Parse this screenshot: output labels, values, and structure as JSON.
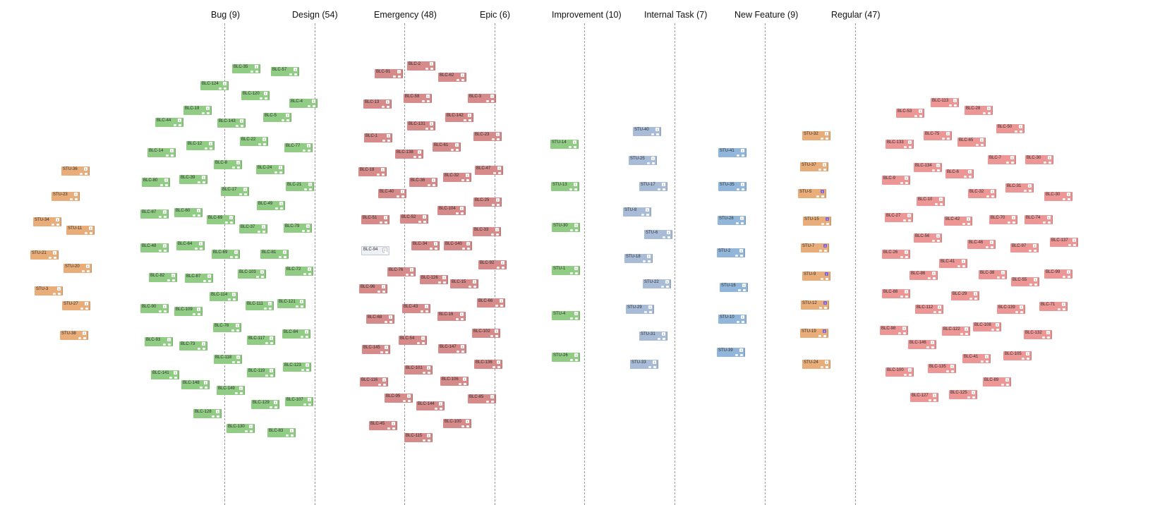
{
  "columns": [
    {
      "key": "bug",
      "label": "Bug (9)"
    },
    {
      "key": "design",
      "label": "Design (54)"
    },
    {
      "key": "emergency",
      "label": "Emergency (48)"
    },
    {
      "key": "epic",
      "label": "Epic (6)"
    },
    {
      "key": "improvement",
      "label": "Improvement (10)"
    },
    {
      "key": "internal-task",
      "label": "Internal Task (7)"
    },
    {
      "key": "new-feature",
      "label": "New Feature (9)"
    },
    {
      "key": "regular",
      "label": "Regular (47)"
    }
  ],
  "card_badge_text": "1",
  "colors": {
    "green": "#90cc84",
    "red": "#d68a89",
    "blue": "#a8bcd8",
    "blue2": "#92b6da",
    "orange": "#e8ad79",
    "coral": "#ec9696",
    "pale": "#edf0f6",
    "column_line": "#9a9a9a",
    "badge_accent": "#7c63d8"
  },
  "cards": [
    {
      "id": "STU-36",
      "color": "orange"
    },
    {
      "id": "STU-23",
      "color": "orange"
    },
    {
      "id": "STU-34",
      "color": "orange"
    },
    {
      "id": "STU-11",
      "color": "orange"
    },
    {
      "id": "STU-21",
      "color": "orange"
    },
    {
      "id": "STU-20",
      "color": "orange"
    },
    {
      "id": "STU-3",
      "color": "orange"
    },
    {
      "id": "STU-27",
      "color": "orange"
    },
    {
      "id": "STU-38",
      "color": "orange"
    },
    {
      "id": "BLC-35",
      "color": "green"
    },
    {
      "id": "BLC-57",
      "color": "green"
    },
    {
      "id": "BLC-124",
      "color": "green"
    },
    {
      "id": "BLC-120",
      "color": "green"
    },
    {
      "id": "BLC-4",
      "color": "green"
    },
    {
      "id": "BLC-19",
      "color": "green"
    },
    {
      "id": "BLC-5",
      "color": "green"
    },
    {
      "id": "BLC-44",
      "color": "green"
    },
    {
      "id": "BLC-143",
      "color": "green"
    },
    {
      "id": "BLC-12",
      "color": "green"
    },
    {
      "id": "BLC-22",
      "color": "green"
    },
    {
      "id": "BLC-77",
      "color": "green"
    },
    {
      "id": "BLC-14",
      "color": "green"
    },
    {
      "id": "BLC-8",
      "color": "green"
    },
    {
      "id": "BLC-24",
      "color": "green"
    },
    {
      "id": "BLC-39",
      "color": "green"
    },
    {
      "id": "BLC-80",
      "color": "green"
    },
    {
      "id": "BLC-21",
      "color": "green"
    },
    {
      "id": "BLC-17",
      "color": "green"
    },
    {
      "id": "BLC-49",
      "color": "green"
    },
    {
      "id": "BLC-67",
      "color": "green"
    },
    {
      "id": "BLC-60",
      "color": "green"
    },
    {
      "id": "BLC-69",
      "color": "green"
    },
    {
      "id": "BLC-37",
      "color": "green"
    },
    {
      "id": "BLC-79",
      "color": "green"
    },
    {
      "id": "BLC-48",
      "color": "green"
    },
    {
      "id": "BLC-64",
      "color": "green"
    },
    {
      "id": "BLC-69",
      "color": "green"
    },
    {
      "id": "BLC-81",
      "color": "green"
    },
    {
      "id": "BLC-103",
      "color": "green"
    },
    {
      "id": "BLC-72",
      "color": "green"
    },
    {
      "id": "BLC-82",
      "color": "green"
    },
    {
      "id": "BLC-87",
      "color": "green"
    },
    {
      "id": "BLC-114",
      "color": "green"
    },
    {
      "id": "BLC-90",
      "color": "green"
    },
    {
      "id": "BLC-109",
      "color": "green"
    },
    {
      "id": "BLC-111",
      "color": "green"
    },
    {
      "id": "BLC-121",
      "color": "green"
    },
    {
      "id": "BLC-78",
      "color": "green"
    },
    {
      "id": "BLC-84",
      "color": "green"
    },
    {
      "id": "BLC-93",
      "color": "green"
    },
    {
      "id": "BLC-73",
      "color": "green"
    },
    {
      "id": "BLC-117",
      "color": "green"
    },
    {
      "id": "BLC-118",
      "color": "green"
    },
    {
      "id": "BLC-123",
      "color": "green"
    },
    {
      "id": "BLC-119",
      "color": "green"
    },
    {
      "id": "BLC-141",
      "color": "green"
    },
    {
      "id": "BLC-148",
      "color": "green"
    },
    {
      "id": "BLC-149",
      "color": "green"
    },
    {
      "id": "BLC-107",
      "color": "green"
    },
    {
      "id": "BLC-129",
      "color": "green"
    },
    {
      "id": "BLC-128",
      "color": "green"
    },
    {
      "id": "BLC-130",
      "color": "green"
    },
    {
      "id": "BLC-83",
      "color": "green"
    },
    {
      "id": "BLC-2",
      "color": "red"
    },
    {
      "id": "BLC-91",
      "color": "red"
    },
    {
      "id": "BLC-62",
      "color": "red"
    },
    {
      "id": "BLC-58",
      "color": "red"
    },
    {
      "id": "BLC-3",
      "color": "red"
    },
    {
      "id": "BLC-13",
      "color": "red"
    },
    {
      "id": "BLC-131",
      "color": "red"
    },
    {
      "id": "BLC-142",
      "color": "red"
    },
    {
      "id": "BLC-1",
      "color": "red"
    },
    {
      "id": "BLC-23",
      "color": "red"
    },
    {
      "id": "BLC-61",
      "color": "red"
    },
    {
      "id": "BLC-138",
      "color": "red"
    },
    {
      "id": "BLC-18",
      "color": "red"
    },
    {
      "id": "BLC-32",
      "color": "red"
    },
    {
      "id": "BLC-47",
      "color": "red"
    },
    {
      "id": "BLC-36",
      "color": "red"
    },
    {
      "id": "BLC-40",
      "color": "red"
    },
    {
      "id": "BLC-25",
      "color": "red"
    },
    {
      "id": "BLC-104",
      "color": "red"
    },
    {
      "id": "BLC-51",
      "color": "red"
    },
    {
      "id": "BLC-52",
      "color": "red"
    },
    {
      "id": "BLC-33",
      "color": "red"
    },
    {
      "id": "BLC-94",
      "color": "pale"
    },
    {
      "id": "BLC-34",
      "color": "red"
    },
    {
      "id": "BLC-140",
      "color": "red"
    },
    {
      "id": "BLC-92",
      "color": "red"
    },
    {
      "id": "BLC-76",
      "color": "red"
    },
    {
      "id": "BLC-126",
      "color": "red"
    },
    {
      "id": "BLC-15",
      "color": "red"
    },
    {
      "id": "BLC-96",
      "color": "red"
    },
    {
      "id": "BLC-43",
      "color": "red"
    },
    {
      "id": "BLC-66",
      "color": "red"
    },
    {
      "id": "BLC-68",
      "color": "red"
    },
    {
      "id": "BLC-16",
      "color": "red"
    },
    {
      "id": "BLC-102",
      "color": "red"
    },
    {
      "id": "BLC-54",
      "color": "red"
    },
    {
      "id": "BLC-145",
      "color": "red"
    },
    {
      "id": "BLC-147",
      "color": "red"
    },
    {
      "id": "BLC-136",
      "color": "red"
    },
    {
      "id": "BLC-101",
      "color": "red"
    },
    {
      "id": "BLC-116",
      "color": "red"
    },
    {
      "id": "BLC-106",
      "color": "red"
    },
    {
      "id": "BLC-95",
      "color": "red"
    },
    {
      "id": "BLC-85",
      "color": "red"
    },
    {
      "id": "BLC-144",
      "color": "red"
    },
    {
      "id": "BLC-45",
      "color": "red"
    },
    {
      "id": "BLC-100",
      "color": "red"
    },
    {
      "id": "BLC-115",
      "color": "red"
    },
    {
      "id": "STU-14",
      "color": "green"
    },
    {
      "id": "STU-13",
      "color": "green"
    },
    {
      "id": "STU-30",
      "color": "green"
    },
    {
      "id": "STU-1",
      "color": "green"
    },
    {
      "id": "STU-4",
      "color": "green"
    },
    {
      "id": "STU-26",
      "color": "green"
    },
    {
      "id": "STU-40",
      "color": "blue"
    },
    {
      "id": "STU-25",
      "color": "blue"
    },
    {
      "id": "STU-17",
      "color": "blue"
    },
    {
      "id": "STU-8",
      "color": "blue"
    },
    {
      "id": "STU-6",
      "color": "blue"
    },
    {
      "id": "STU-18",
      "color": "blue"
    },
    {
      "id": "STU-22",
      "color": "blue"
    },
    {
      "id": "STU-29",
      "color": "blue"
    },
    {
      "id": "STU-31",
      "color": "blue"
    },
    {
      "id": "STU-33",
      "color": "blue"
    },
    {
      "id": "STU-41",
      "color": "blue2"
    },
    {
      "id": "STU-35",
      "color": "blue2"
    },
    {
      "id": "STU-28",
      "color": "blue2"
    },
    {
      "id": "STU-2",
      "color": "blue2"
    },
    {
      "id": "STU-16",
      "color": "blue2"
    },
    {
      "id": "STU-10",
      "color": "blue2"
    },
    {
      "id": "STU-39",
      "color": "blue2"
    },
    {
      "id": "STU-32",
      "color": "orange"
    },
    {
      "id": "STU-37",
      "color": "orange"
    },
    {
      "id": "STU-5",
      "color": "orange"
    },
    {
      "id": "STU-15",
      "color": "orange"
    },
    {
      "id": "STU-7",
      "color": "orange"
    },
    {
      "id": "STU-9",
      "color": "orange"
    },
    {
      "id": "STU-12",
      "color": "orange"
    },
    {
      "id": "STU-19",
      "color": "orange"
    },
    {
      "id": "STU-24",
      "color": "orange"
    },
    {
      "id": "BLC-113",
      "color": "coral"
    },
    {
      "id": "BLC-53",
      "color": "coral"
    },
    {
      "id": "BLC-28",
      "color": "coral"
    },
    {
      "id": "BLC-50",
      "color": "coral"
    },
    {
      "id": "BLC-75",
      "color": "coral"
    },
    {
      "id": "BLC-133",
      "color": "coral"
    },
    {
      "id": "BLC-65",
      "color": "coral"
    },
    {
      "id": "BLC-7",
      "color": "coral"
    },
    {
      "id": "BLC-30",
      "color": "coral"
    },
    {
      "id": "BLC-134",
      "color": "coral"
    },
    {
      "id": "BLC-6",
      "color": "coral"
    },
    {
      "id": "BLC-9",
      "color": "coral"
    },
    {
      "id": "BLC-31",
      "color": "coral"
    },
    {
      "id": "BLC-32",
      "color": "coral"
    },
    {
      "id": "BLC-10",
      "color": "coral"
    },
    {
      "id": "BLC-30",
      "color": "coral"
    },
    {
      "id": "BLC-27",
      "color": "coral"
    },
    {
      "id": "BLC-42",
      "color": "coral"
    },
    {
      "id": "BLC-70",
      "color": "coral"
    },
    {
      "id": "BLC-74",
      "color": "coral"
    },
    {
      "id": "BLC-137",
      "color": "coral"
    },
    {
      "id": "BLC-56",
      "color": "coral"
    },
    {
      "id": "BLC-46",
      "color": "coral"
    },
    {
      "id": "BLC-97",
      "color": "coral"
    },
    {
      "id": "BLC-26",
      "color": "coral"
    },
    {
      "id": "BLC-41",
      "color": "coral"
    },
    {
      "id": "BLC-86",
      "color": "coral"
    },
    {
      "id": "BLC-38",
      "color": "coral"
    },
    {
      "id": "BLC-99",
      "color": "coral"
    },
    {
      "id": "BLC-55",
      "color": "coral"
    },
    {
      "id": "BLC-88",
      "color": "coral"
    },
    {
      "id": "BLC-29",
      "color": "coral"
    },
    {
      "id": "BLC-112",
      "color": "coral"
    },
    {
      "id": "BLC-139",
      "color": "coral"
    },
    {
      "id": "BLC-71",
      "color": "coral"
    },
    {
      "id": "BLC-98",
      "color": "coral"
    },
    {
      "id": "BLC-122",
      "color": "coral"
    },
    {
      "id": "BLC-108",
      "color": "coral"
    },
    {
      "id": "BLC-132",
      "color": "coral"
    },
    {
      "id": "BLC-146",
      "color": "coral"
    },
    {
      "id": "BLC-41",
      "color": "coral"
    },
    {
      "id": "BLC-105",
      "color": "coral"
    },
    {
      "id": "BLC-135",
      "color": "coral"
    },
    {
      "id": "BLC-100",
      "color": "coral"
    },
    {
      "id": "BLC-89",
      "color": "coral"
    },
    {
      "id": "BLC-127",
      "color": "coral"
    },
    {
      "id": "BLC-125",
      "color": "coral"
    }
  ]
}
